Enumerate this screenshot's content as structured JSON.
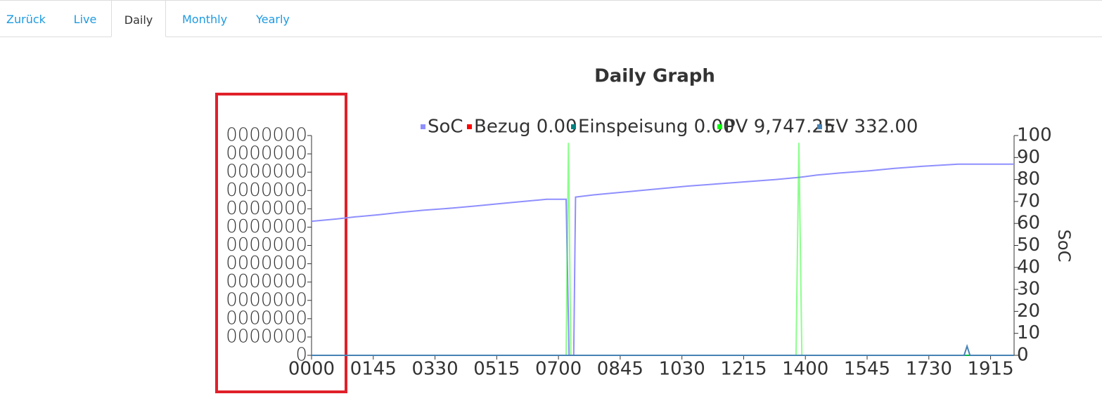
{
  "tabs": [
    "Zurück",
    "Live",
    "Daily",
    "Monthly",
    "Yearly"
  ],
  "chart_data": {
    "type": "line",
    "title": "Daily Graph",
    "y2_label": "SoC",
    "xlim": [
      0,
      1195
    ],
    "xticks": [
      {
        "value": 0,
        "label": "0000"
      },
      {
        "value": 105,
        "label": "0145"
      },
      {
        "value": 210,
        "label": "0330"
      },
      {
        "value": 315,
        "label": "0515"
      },
      {
        "value": 420,
        "label": "0700"
      },
      {
        "value": 525,
        "label": "0845"
      },
      {
        "value": 630,
        "label": "1030"
      },
      {
        "value": 735,
        "label": "1215"
      },
      {
        "value": 840,
        "label": "1400"
      },
      {
        "value": 945,
        "label": "1545"
      },
      {
        "value": 1050,
        "label": "1730"
      },
      {
        "value": 1155,
        "label": "1915"
      }
    ],
    "ylim": [
      0,
      12
    ],
    "yticks": [
      0,
      {
        "value": 1,
        "label": "0000000"
      },
      {
        "value": 2,
        "label": "0000000"
      },
      {
        "value": 3,
        "label": "0000000"
      },
      {
        "value": 4,
        "label": "0000000"
      },
      {
        "value": 5,
        "label": "0000000"
      },
      {
        "value": 6,
        "label": "0000000"
      },
      {
        "value": 7,
        "label": "0000000"
      },
      {
        "value": 8,
        "label": "0000000"
      },
      {
        "value": 9,
        "label": "0000000"
      },
      {
        "value": 10,
        "label": "0000000"
      },
      {
        "value": 11,
        "label": "0000000"
      },
      {
        "value": 12,
        "label": "0000000"
      }
    ],
    "y2lim": [
      0,
      100
    ],
    "y2ticks": [
      0,
      10,
      20,
      30,
      40,
      50,
      60,
      70,
      80,
      90,
      100
    ],
    "series": [
      {
        "name": "SoC",
        "color": "#8f8fff",
        "axis": "y2",
        "x": [
          0,
          42,
          75,
          115,
          150,
          190,
          240,
          280,
          320,
          360,
          400,
          433,
          438,
          446,
          449,
          480,
          520,
          560,
          600,
          640,
          690,
          740,
          790,
          830,
          860,
          900,
          950,
          990,
          1040,
          1100,
          1195
        ],
        "values": [
          61,
          62,
          63,
          64,
          65,
          66,
          67,
          68,
          69,
          70,
          71,
          71,
          0,
          0,
          72,
          73,
          74,
          75,
          76,
          77,
          78,
          79,
          80,
          81,
          82,
          83,
          84,
          85,
          86,
          87,
          87
        ]
      },
      {
        "name": "Bezug 0.00",
        "color": "#ff0000",
        "x": [
          0,
          1195
        ],
        "values": [
          0,
          0
        ]
      },
      {
        "name": "Einspeisung 0.00",
        "color": "#008080",
        "x": [
          0,
          1195
        ],
        "values": [
          0,
          0
        ]
      },
      {
        "name": "PV 9,747.25",
        "color": "#00ff00",
        "x": [
          0,
          433,
          437,
          441,
          824,
          829,
          834,
          1195
        ],
        "values": [
          0,
          0,
          11.6,
          0,
          0,
          11.6,
          0,
          0
        ]
      },
      {
        "name": "EV 332.00",
        "color": "#4682b4",
        "x": [
          0,
          1110,
          1115,
          1120,
          1195
        ],
        "values": [
          0,
          0,
          0.5,
          0,
          0
        ]
      }
    ]
  }
}
